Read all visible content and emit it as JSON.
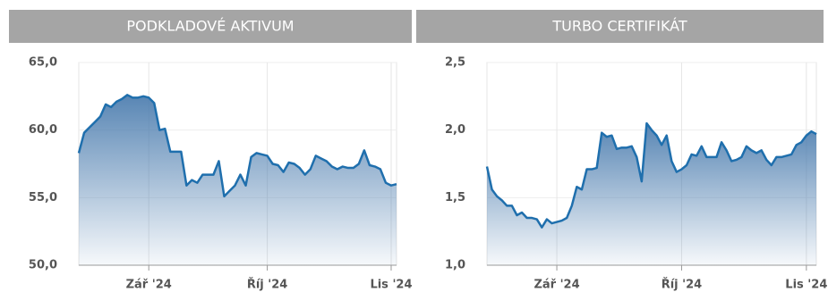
{
  "chart_data": [
    {
      "type": "area",
      "title": "PODKLADOVÉ AKTIVUM",
      "color": "#1f6fad",
      "grid": true,
      "values": [
        58.3,
        59.8,
        60.2,
        60.6,
        61.0,
        61.9,
        61.7,
        62.1,
        62.3,
        62.6,
        62.4,
        62.4,
        62.5,
        62.4,
        62.0,
        60.0,
        60.1,
        58.4,
        58.4,
        58.4,
        55.9,
        56.3,
        56.1,
        56.7,
        56.7,
        56.7,
        57.7,
        55.1,
        55.5,
        55.9,
        56.7,
        55.9,
        58.0,
        58.3,
        58.2,
        58.1,
        57.5,
        57.4,
        56.9,
        57.6,
        57.5,
        57.2,
        56.7,
        57.1,
        58.1,
        57.9,
        57.7,
        57.3,
        57.1,
        57.3,
        57.2,
        57.2,
        57.5,
        58.5,
        57.4,
        57.3,
        57.1,
        56.1,
        55.9,
        56.0
      ],
      "xlim": [
        0,
        59
      ],
      "xticks": [
        {
          "value": 13,
          "label": "Zář '24"
        },
        {
          "value": 35,
          "label": "Říj '24"
        },
        {
          "value": 58,
          "label": "Lis '24"
        }
      ],
      "ylim": [
        50,
        65
      ],
      "yticks": [
        {
          "value": 50,
          "label": "50,0"
        },
        {
          "value": 55,
          "label": "55,0"
        },
        {
          "value": 60,
          "label": "60,0"
        },
        {
          "value": 65,
          "label": "65,0"
        }
      ]
    },
    {
      "type": "area",
      "title": "TURBO CERTIFIKÁT",
      "color": "#1f6fad",
      "grid": true,
      "values": [
        1.73,
        1.56,
        1.51,
        1.48,
        1.44,
        1.44,
        1.37,
        1.39,
        1.35,
        1.35,
        1.34,
        1.28,
        1.34,
        1.31,
        1.32,
        1.33,
        1.35,
        1.44,
        1.58,
        1.56,
        1.71,
        1.71,
        1.72,
        1.98,
        1.95,
        1.96,
        1.86,
        1.87,
        1.87,
        1.88,
        1.8,
        1.62,
        2.05,
        2.0,
        1.96,
        1.89,
        1.96,
        1.77,
        1.69,
        1.71,
        1.74,
        1.82,
        1.81,
        1.88,
        1.8,
        1.8,
        1.8,
        1.91,
        1.85,
        1.77,
        1.78,
        1.8,
        1.88,
        1.85,
        1.83,
        1.85,
        1.78,
        1.74,
        1.8,
        1.8,
        1.81,
        1.82,
        1.89,
        1.91,
        1.96,
        1.99,
        1.97
      ],
      "xlim": [
        0,
        66
      ],
      "xticks": [
        {
          "value": 14,
          "label": "Zář '24"
        },
        {
          "value": 39,
          "label": "Říj '24"
        },
        {
          "value": 64,
          "label": "Lis '24"
        }
      ],
      "ylim": [
        1.0,
        2.5
      ],
      "yticks": [
        {
          "value": 1,
          "label": "1,0"
        },
        {
          "value": 1.5,
          "label": "1,5"
        },
        {
          "value": 2,
          "label": "2,0"
        },
        {
          "value": 2.5,
          "label": "2,5"
        }
      ]
    }
  ]
}
